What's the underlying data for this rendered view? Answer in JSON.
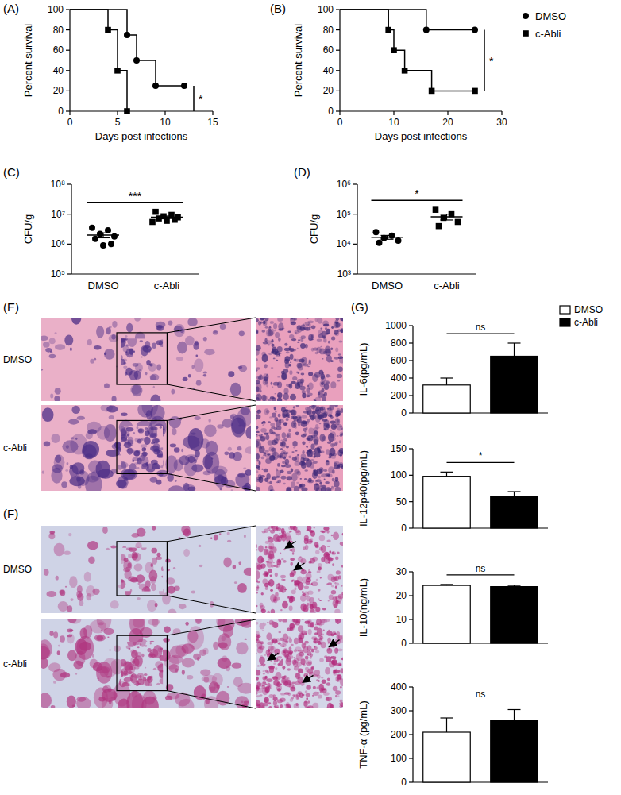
{
  "chart_data": [
    {
      "type": "line",
      "panel": "(A)",
      "line_style": "step",
      "x_label": "Days post infections",
      "y_label": "Percent survival",
      "xlim": [
        0,
        15
      ],
      "xticks": [
        0,
        5,
        10,
        15
      ],
      "ylim": [
        0,
        100
      ],
      "yticks": [
        0,
        20,
        40,
        60,
        80,
        100
      ],
      "series": [
        {
          "x": [
            0,
            6,
            7,
            9,
            12
          ],
          "values": [
            100,
            75,
            50,
            25,
            25
          ],
          "marker": "circle",
          "color": "#000000"
        },
        {
          "x": [
            0,
            4,
            5,
            6
          ],
          "values": [
            100,
            80,
            40,
            0
          ],
          "marker": "square",
          "color": "#000000"
        }
      ],
      "annotations": [
        "*"
      ]
    },
    {
      "type": "line",
      "panel": "(B)",
      "line_style": "step",
      "x_label": "Days post infections",
      "y_label": "Percent survival",
      "xlim": [
        0,
        30
      ],
      "xticks": [
        0,
        10,
        20,
        30
      ],
      "ylim": [
        0,
        100
      ],
      "yticks": [
        0,
        20,
        40,
        60,
        80,
        100
      ],
      "legend": "right",
      "series": [
        {
          "name": "DMSO",
          "x": [
            0,
            16,
            25
          ],
          "values": [
            100,
            80,
            80
          ],
          "marker": "circle",
          "color": "#000000"
        },
        {
          "name": "c-Abli",
          "x": [
            0,
            9,
            10,
            12,
            17,
            25
          ],
          "values": [
            100,
            80,
            60,
            40,
            20,
            20
          ],
          "marker": "square",
          "color": "#000000"
        }
      ],
      "annotations": [
        "*"
      ]
    },
    {
      "type": "scatter",
      "panel": "(C)",
      "y_label": "CFU/g",
      "log": "y",
      "categories": [
        "DMSO",
        "c-Abli"
      ],
      "ylim": [
        100000,
        100000000
      ],
      "yticks": [
        {
          "value": 100000,
          "label": "10⁵"
        },
        {
          "value": 1000000,
          "label": "10⁶"
        },
        {
          "value": 10000000,
          "label": "10⁷"
        },
        {
          "value": 100000000,
          "label": "10⁸"
        }
      ],
      "groups": [
        {
          "values": [
            3500000,
            2900000,
            2200000,
            1800000,
            1500000,
            1000000,
            900000
          ],
          "mean": 2000000,
          "error": 380000,
          "marker": "circle",
          "color": "#000000"
        },
        {
          "values": [
            12000000,
            9500000,
            8500000,
            7800000,
            7200000,
            6500000,
            6000000,
            5500000
          ],
          "mean": 7900000,
          "error": 750000,
          "marker": "square",
          "color": "#000000"
        }
      ],
      "annotations": [
        "***"
      ]
    },
    {
      "type": "scatter",
      "panel": "(D)",
      "y_label": "CFU/g",
      "log": "y",
      "categories": [
        "DMSO",
        "c-Abli"
      ],
      "ylim": [
        1000,
        1000000
      ],
      "yticks": [
        {
          "value": 1000,
          "label": "10³"
        },
        {
          "value": 10000,
          "label": "10⁴"
        },
        {
          "value": 100000,
          "label": "10⁵"
        },
        {
          "value": 1000000,
          "label": "10⁶"
        }
      ],
      "groups": [
        {
          "values": [
            25000,
            19000,
            16000,
            13000,
            11000
          ],
          "mean": 17000,
          "error": 2500,
          "marker": "circle",
          "color": "#000000"
        },
        {
          "values": [
            140000,
            100000,
            75000,
            55000,
            40000
          ],
          "mean": 82000,
          "error": 18000,
          "marker": "square",
          "color": "#000000"
        }
      ],
      "annotations": [
        "*"
      ]
    },
    {
      "type": "bar",
      "panel": "(G)",
      "y_label": "IL-6(pg/mL)",
      "categories": [
        "DMSO",
        "c-Abli"
      ],
      "tick_labels": "y",
      "legend": "top-right",
      "colors": [
        "#ffffff",
        "#000000"
      ],
      "values": [
        320,
        650
      ],
      "errors": [
        80,
        150
      ],
      "ylim": [
        0,
        1000
      ],
      "yticks": [
        0,
        200,
        400,
        600,
        800,
        1000
      ],
      "annotations": [
        "ns"
      ]
    },
    {
      "type": "bar",
      "y_label": "IL-12p40(pg/mL)",
      "categories": [
        null,
        null
      ],
      "tick_labels": "y",
      "colors": [
        "#ffffff",
        "#000000"
      ],
      "values": [
        98,
        60
      ],
      "errors": [
        8,
        9
      ],
      "ylim": [
        0,
        150
      ],
      "yticks": [
        0,
        50,
        100,
        150
      ],
      "annotations": [
        "*"
      ]
    },
    {
      "type": "bar",
      "y_label": "IL-10(ng/mL)",
      "categories": [
        null,
        null
      ],
      "tick_labels": "y",
      "colors": [
        "#ffffff",
        "#000000"
      ],
      "values": [
        24.3,
        23.8
      ],
      "errors": [
        0.4,
        0.5
      ],
      "ylim": [
        0,
        30
      ],
      "yticks": [
        0,
        10,
        20,
        30
      ],
      "annotations": [
        "ns"
      ]
    },
    {
      "type": "bar",
      "y_label": "TNF-α (pg/mL)",
      "categories": [
        null,
        null
      ],
      "tick_labels": "y",
      "colors": [
        "#ffffff",
        "#000000"
      ],
      "values": [
        210,
        260
      ],
      "errors": [
        60,
        45
      ],
      "ylim": [
        0,
        400
      ],
      "yticks": [
        0,
        100,
        200,
        300,
        400
      ],
      "annotations": [
        "ns"
      ]
    }
  ],
  "images": [
    {
      "panel": "(E)",
      "rows": [
        "DMSO",
        "c-Abli"
      ]
    },
    {
      "panel": "(F)",
      "rows": [
        "DMSO",
        "c-Abli"
      ]
    }
  ]
}
